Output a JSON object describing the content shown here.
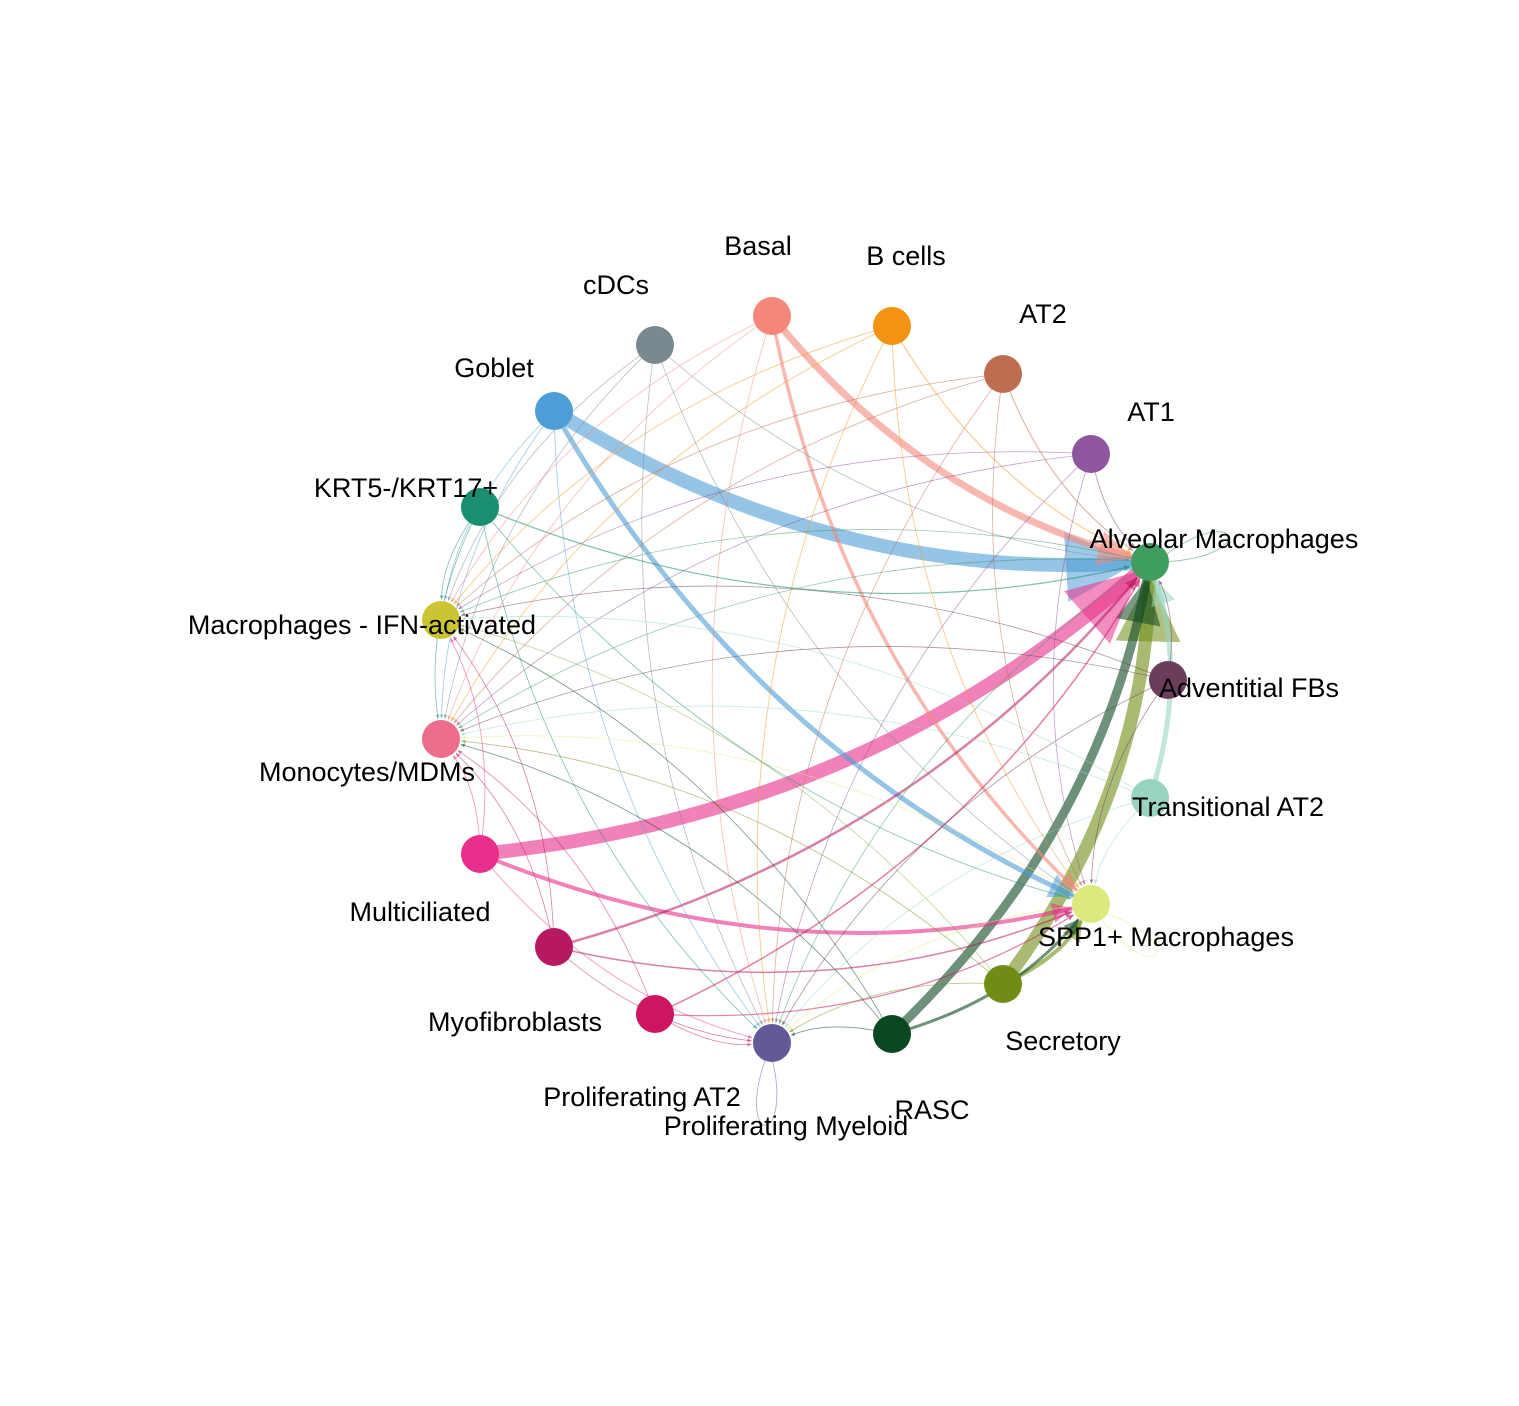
{
  "diagram": {
    "type": "circle-network",
    "nodes": [
      {
        "id": "basal",
        "label": "Basal",
        "color": "#f4877a"
      },
      {
        "id": "bcells",
        "label": "B cells",
        "color": "#f39312"
      },
      {
        "id": "at2",
        "label": "AT2",
        "color": "#bf6d4f"
      },
      {
        "id": "at1",
        "label": "AT1",
        "color": "#8e569e"
      },
      {
        "id": "alvmac",
        "label": "Alveolar Macrophages",
        "color": "#3f9d60"
      },
      {
        "id": "advfb",
        "label": "Adventitial FBs",
        "color": "#6b3d5b"
      },
      {
        "id": "transat2",
        "label": "Transitional AT2",
        "color": "#98d5c1"
      },
      {
        "id": "spp1mac",
        "label": "SPP1+ Macrophages",
        "color": "#dde97c"
      },
      {
        "id": "secretory",
        "label": "Secretory",
        "color": "#6f8d14"
      },
      {
        "id": "rasc",
        "label": "RASC",
        "color": "#0b4720"
      },
      {
        "id": "prolmyeloid",
        "label": "Proliferating Myeloid",
        "color": "#625a98"
      },
      {
        "id": "prolat2",
        "label": "Proliferating AT2",
        "color": "#cd1562"
      },
      {
        "id": "myofib",
        "label": "Myofibroblasts",
        "color": "#b71862"
      },
      {
        "id": "multicil",
        "label": "Multiciliated",
        "color": "#e72f8b"
      },
      {
        "id": "mono",
        "label": "Monocytes/MDMs",
        "color": "#ec6d8c"
      },
      {
        "id": "macifn",
        "label": "Macrophages - IFN-activated",
        "color": "#cac531"
      },
      {
        "id": "krt",
        "label": "KRT5-/KRT17+",
        "color": "#1a8e70"
      },
      {
        "id": "goblet",
        "label": "Goblet",
        "color": "#4f9dd6"
      },
      {
        "id": "cdcs",
        "label": "cDCs",
        "color": "#7a8890"
      }
    ],
    "edges": [
      {
        "from": "goblet",
        "to": "alvmac",
        "weight": 14
      },
      {
        "from": "multicil",
        "to": "alvmac",
        "weight": 14
      },
      {
        "from": "secretory",
        "to": "alvmac",
        "weight": 13
      },
      {
        "from": "rasc",
        "to": "alvmac",
        "weight": 9
      },
      {
        "from": "basal",
        "to": "alvmac",
        "weight": 7
      },
      {
        "from": "goblet",
        "to": "spp1mac",
        "weight": 5
      },
      {
        "from": "transat2",
        "to": "alvmac",
        "weight": 5
      },
      {
        "from": "multicil",
        "to": "spp1mac",
        "weight": 4
      },
      {
        "from": "basal",
        "to": "spp1mac",
        "weight": 3.5
      },
      {
        "from": "secretory",
        "to": "spp1mac",
        "weight": 4
      },
      {
        "from": "rasc",
        "to": "spp1mac",
        "weight": 3
      },
      {
        "from": "myofib",
        "to": "alvmac",
        "weight": 2.5
      },
      {
        "from": "prolat2",
        "to": "alvmac",
        "weight": 1.5
      },
      {
        "from": "myofib",
        "to": "spp1mac",
        "weight": 1.5
      },
      {
        "from": "prolat2",
        "to": "spp1mac",
        "weight": 1.2
      },
      {
        "from": "krt",
        "to": "alvmac",
        "weight": 1.2
      },
      {
        "from": "bcells",
        "to": "alvmac",
        "weight": 1
      },
      {
        "from": "at2",
        "to": "alvmac",
        "weight": 1
      },
      {
        "from": "at1",
        "to": "alvmac",
        "weight": 1
      },
      {
        "from": "cdcs",
        "to": "alvmac",
        "weight": 0.8
      },
      {
        "from": "advfb",
        "to": "alvmac",
        "weight": 0.8
      },
      {
        "from": "cdcs",
        "to": "prolmyeloid",
        "weight": 0.8
      },
      {
        "from": "goblet",
        "to": "prolmyeloid",
        "weight": 0.8
      },
      {
        "from": "basal",
        "to": "prolmyeloid",
        "weight": 0.8
      },
      {
        "from": "bcells",
        "to": "prolmyeloid",
        "weight": 0.8
      },
      {
        "from": "at2",
        "to": "prolmyeloid",
        "weight": 0.8
      },
      {
        "from": "at1",
        "to": "prolmyeloid",
        "weight": 0.8
      },
      {
        "from": "krt",
        "to": "prolmyeloid",
        "weight": 0.8
      },
      {
        "from": "multicil",
        "to": "prolmyeloid",
        "weight": 0.8
      },
      {
        "from": "myofib",
        "to": "prolmyeloid",
        "weight": 0.8
      },
      {
        "from": "prolat2",
        "to": "prolmyeloid",
        "weight": 0.8
      },
      {
        "from": "rasc",
        "to": "prolmyeloid",
        "weight": 0.8
      },
      {
        "from": "secretory",
        "to": "prolmyeloid",
        "weight": 0.8
      },
      {
        "from": "transat2",
        "to": "prolmyeloid",
        "weight": 0.8
      },
      {
        "from": "advfb",
        "to": "prolmyeloid",
        "weight": 0.8
      },
      {
        "from": "alvmac",
        "to": "prolmyeloid",
        "weight": 0.8
      },
      {
        "from": "spp1mac",
        "to": "prolmyeloid",
        "weight": 0.8
      },
      {
        "from": "basal",
        "to": "mono",
        "weight": 0.8
      },
      {
        "from": "bcells",
        "to": "mono",
        "weight": 0.8
      },
      {
        "from": "at2",
        "to": "mono",
        "weight": 0.8
      },
      {
        "from": "at1",
        "to": "mono",
        "weight": 0.8
      },
      {
        "from": "alvmac",
        "to": "mono",
        "weight": 0.8
      },
      {
        "from": "advfb",
        "to": "mono",
        "weight": 0.8
      },
      {
        "from": "transat2",
        "to": "mono",
        "weight": 0.8
      },
      {
        "from": "spp1mac",
        "to": "mono",
        "weight": 0.8
      },
      {
        "from": "secretory",
        "to": "mono",
        "weight": 0.8
      },
      {
        "from": "rasc",
        "to": "mono",
        "weight": 0.8
      },
      {
        "from": "krt",
        "to": "mono",
        "weight": 0.8
      },
      {
        "from": "goblet",
        "to": "mono",
        "weight": 0.8
      },
      {
        "from": "cdcs",
        "to": "mono",
        "weight": 0.8
      },
      {
        "from": "multicil",
        "to": "mono",
        "weight": 0.8
      },
      {
        "from": "myofib",
        "to": "mono",
        "weight": 0.8
      },
      {
        "from": "prolat2",
        "to": "mono",
        "weight": 0.8
      },
      {
        "from": "basal",
        "to": "macifn",
        "weight": 0.8
      },
      {
        "from": "bcells",
        "to": "macifn",
        "weight": 0.8
      },
      {
        "from": "at2",
        "to": "macifn",
        "weight": 0.8
      },
      {
        "from": "at1",
        "to": "macifn",
        "weight": 0.8
      },
      {
        "from": "alvmac",
        "to": "macifn",
        "weight": 0.8
      },
      {
        "from": "advfb",
        "to": "macifn",
        "weight": 0.8
      },
      {
        "from": "transat2",
        "to": "macifn",
        "weight": 0.8
      },
      {
        "from": "krt",
        "to": "macifn",
        "weight": 0.8
      },
      {
        "from": "goblet",
        "to": "macifn",
        "weight": 0.8
      },
      {
        "from": "cdcs",
        "to": "macifn",
        "weight": 0.8
      },
      {
        "from": "multicil",
        "to": "macifn",
        "weight": 0.8
      },
      {
        "from": "myofib",
        "to": "macifn",
        "weight": 0.8
      },
      {
        "from": "rasc",
        "to": "macifn",
        "weight": 0.8
      },
      {
        "from": "cdcs",
        "to": "spp1mac",
        "weight": 0.8
      },
      {
        "from": "bcells",
        "to": "spp1mac",
        "weight": 0.8
      },
      {
        "from": "at2",
        "to": "spp1mac",
        "weight": 0.8
      },
      {
        "from": "at1",
        "to": "spp1mac",
        "weight": 0.8
      },
      {
        "from": "krt",
        "to": "spp1mac",
        "weight": 0.8
      },
      {
        "from": "advfb",
        "to": "spp1mac",
        "weight": 0.8
      },
      {
        "from": "transat2",
        "to": "spp1mac",
        "weight": 0.8
      },
      {
        "from": "secretory",
        "to": "macifn",
        "weight": 0.6
      },
      {
        "from": "alvmac",
        "to": "alvmac",
        "weight": 1
      },
      {
        "from": "spp1mac",
        "to": "spp1mac",
        "weight": 0.8
      },
      {
        "from": "prolmyeloid",
        "to": "prolmyeloid",
        "weight": 0.8
      }
    ]
  }
}
